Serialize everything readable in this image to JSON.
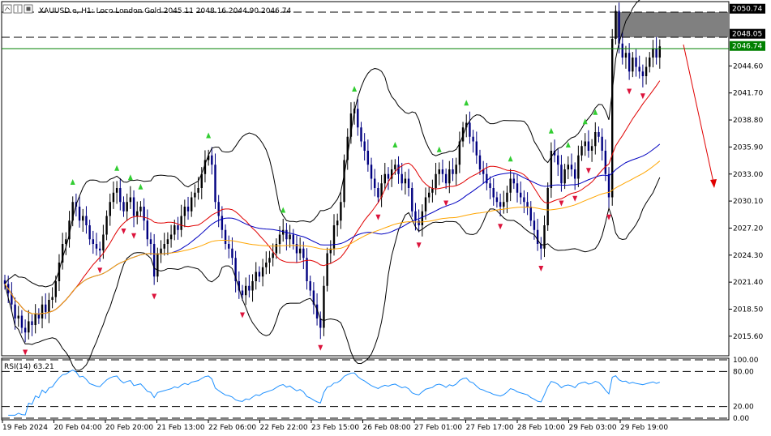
{
  "header": {
    "symbol": "XAUUSD.e",
    "timeframe": "H1",
    "description": "Loco London Gold",
    "ohlc": "2045.11 2048.16 2044.90 2046.74"
  },
  "price_scale": {
    "labels": [
      "2044.60",
      "2041.70",
      "2038.80",
      "2035.90",
      "2033.00",
      "2030.10",
      "2027.20",
      "2024.30",
      "2021.40",
      "2018.50",
      "2015.60"
    ]
  },
  "price_tags": [
    {
      "label": "2050.74",
      "color": "#000000"
    },
    {
      "label": "2048.05",
      "color": "#000000"
    },
    {
      "label": "2046.74",
      "color": "#008000"
    }
  ],
  "rsi": {
    "label": "RSI(14) 63.21",
    "levels": [
      "100.00",
      "80.00",
      "20.00",
      "0.00"
    ],
    "line_color": "#1e90ff"
  },
  "time_axis": {
    "labels": [
      "19 Feb 2024",
      "20 Feb 04:00",
      "20 Feb 20:00",
      "21 Feb 13:00",
      "22 Feb 06:00",
      "22 Feb 22:00",
      "23 Feb 15:00",
      "26 Feb 08:00",
      "27 Feb 01:00",
      "27 Feb 17:00",
      "28 Feb 10:00",
      "29 Feb 03:00",
      "29 Feb 19:00"
    ]
  },
  "colors": {
    "bull_candle": "#000000",
    "bear_candle": "#000080",
    "ma_red": "#e00000",
    "ma_blue": "#0000c0",
    "ma_orange": "#ffa500",
    "up_arrow": "#32cd32",
    "down_arrow": "#dc143c",
    "forecast_arrow": "#e00000"
  },
  "chart_data": {
    "type": "candlestick",
    "y_range": [
      2013.5,
      2051.5
    ],
    "close_series": [
      2021.2,
      2020.2,
      2019.0,
      2017.5,
      2017.8,
      2016.5,
      2016.0,
      2017.2,
      2016.8,
      2018.0,
      2017.5,
      2019.0,
      2018.2,
      2019.5,
      2019.8,
      2021.5,
      2023.5,
      2025.5,
      2026.0,
      2028.0,
      2030.0,
      2029.5,
      2028.0,
      2028.5,
      2027.5,
      2026.0,
      2025.5,
      2025.0,
      2024.8,
      2026.5,
      2028.5,
      2030.0,
      2031.0,
      2031.5,
      2030.0,
      2029.0,
      2030.0,
      2030.5,
      2028.5,
      2029.0,
      2029.5,
      2028.0,
      2026.0,
      2025.5,
      2022.0,
      2024.5,
      2025.0,
      2025.5,
      2026.0,
      2026.5,
      2027.5,
      2027.0,
      2028.5,
      2029.5,
      2029.0,
      2030.5,
      2031.0,
      2031.5,
      2033.0,
      2034.5,
      2035.0,
      2034.0,
      2030.0,
      2028.5,
      2027.0,
      2025.5,
      2025.0,
      2024.0,
      2021.5,
      2020.5,
      2020.0,
      2021.0,
      2020.5,
      2021.5,
      2022.5,
      2022.0,
      2023.0,
      2023.5,
      2024.0,
      2024.5,
      2025.5,
      2026.5,
      2027.0,
      2026.0,
      2026.5,
      2025.5,
      2024.5,
      2025.0,
      2024.0,
      2021.5,
      2020.5,
      2019.0,
      2017.5,
      2016.5,
      2021.0,
      2024.5,
      2025.0,
      2027.5,
      2028.0,
      2030.0,
      2034.5,
      2037.0,
      2039.5,
      2040.0,
      2038.0,
      2036.5,
      2035.5,
      2034.0,
      2032.5,
      2031.5,
      2030.5,
      2032.0,
      2033.0,
      2032.5,
      2033.5,
      2034.0,
      2033.0,
      2032.0,
      2032.5,
      2031.5,
      2029.0,
      2028.0,
      2027.5,
      2029.0,
      2030.5,
      2031.0,
      2031.5,
      2033.0,
      2033.5,
      2033.0,
      2032.0,
      2033.5,
      2033.0,
      2034.0,
      2036.5,
      2038.0,
      2038.5,
      2037.0,
      2036.5,
      2035.0,
      2033.5,
      2033.0,
      2032.0,
      2031.5,
      2030.5,
      2030.0,
      2029.5,
      2030.0,
      2031.0,
      2032.5,
      2032.0,
      2031.0,
      2030.5,
      2030.0,
      2029.5,
      2028.0,
      2027.0,
      2025.5,
      2025.0,
      2027.5,
      2031.5,
      2035.5,
      2035.0,
      2034.0,
      2032.0,
      2033.5,
      2034.0,
      2033.5,
      2032.5,
      2035.0,
      2036.0,
      2036.5,
      2035.5,
      2036.0,
      2037.5,
      2037.0,
      2035.5,
      2033.0,
      2030.5,
      2047.5,
      2050.5,
      2047.0,
      2045.5,
      2046.0,
      2044.0,
      2045.5,
      2044.5,
      2044.0,
      2043.5,
      2044.5,
      2045.5,
      2046.5,
      2045.5,
      2046.7
    ]
  }
}
